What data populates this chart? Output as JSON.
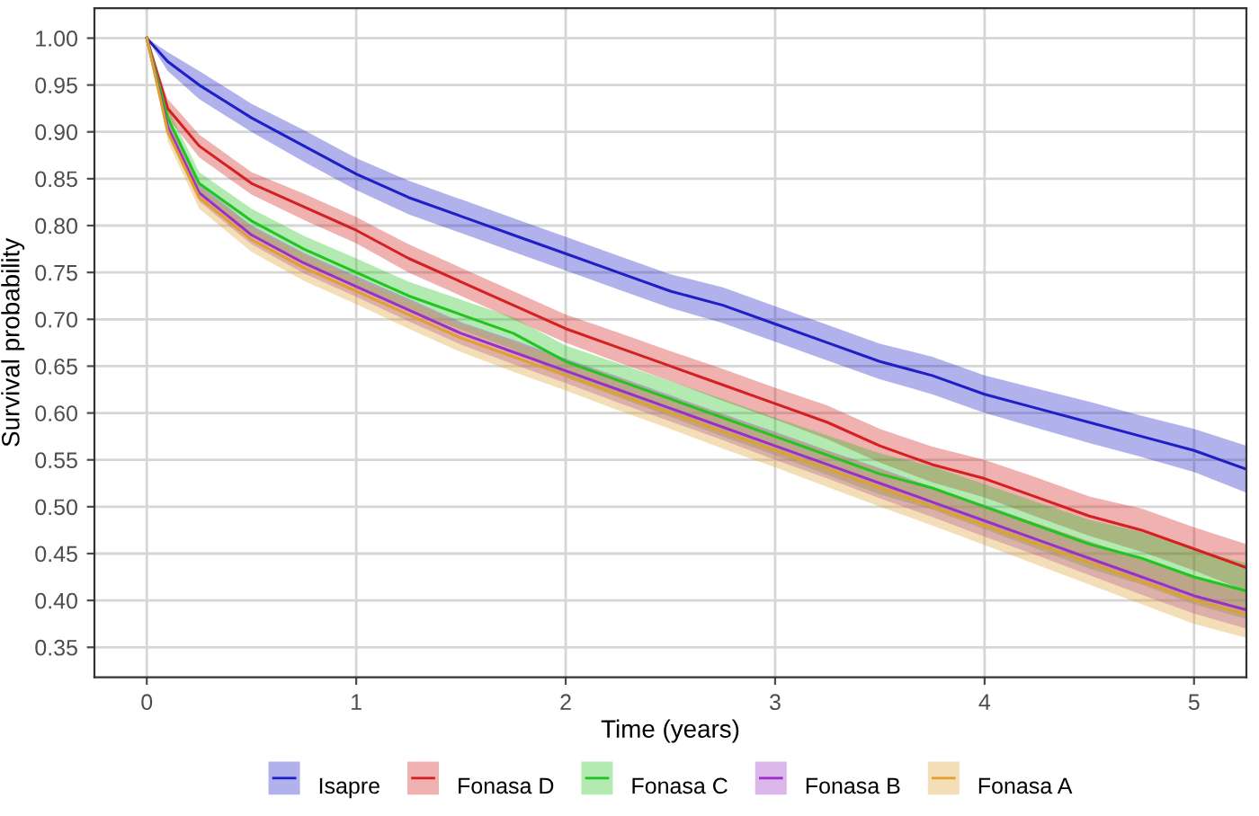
{
  "chart_data": {
    "type": "line",
    "xlabel": "Time (years)",
    "ylabel": "Survival probability",
    "x": [
      0,
      0.1,
      0.25,
      0.5,
      0.75,
      1,
      1.25,
      1.5,
      1.75,
      2,
      2.25,
      2.5,
      2.75,
      3,
      3.25,
      3.5,
      3.75,
      4,
      4.25,
      4.5,
      4.75,
      5,
      5.25
    ],
    "series": [
      {
        "name": "Isapre",
        "color": "#1f1fc8",
        "values": [
          1.0,
          0.975,
          0.95,
          0.915,
          0.885,
          0.855,
          0.83,
          0.81,
          0.79,
          0.77,
          0.75,
          0.73,
          0.715,
          0.695,
          0.675,
          0.655,
          0.64,
          0.62,
          0.605,
          0.59,
          0.575,
          0.56,
          0.54
        ],
        "lower": [
          1.0,
          0.965,
          0.935,
          0.9,
          0.868,
          0.838,
          0.812,
          0.792,
          0.772,
          0.752,
          0.732,
          0.712,
          0.696,
          0.676,
          0.656,
          0.636,
          0.62,
          0.6,
          0.584,
          0.568,
          0.553,
          0.537,
          0.515
        ],
        "upper": [
          1.0,
          0.985,
          0.965,
          0.93,
          0.902,
          0.872,
          0.848,
          0.828,
          0.808,
          0.788,
          0.768,
          0.748,
          0.734,
          0.714,
          0.694,
          0.674,
          0.66,
          0.64,
          0.626,
          0.612,
          0.597,
          0.583,
          0.565
        ]
      },
      {
        "name": "Fonasa D",
        "color": "#d42020",
        "values": [
          1.0,
          0.925,
          0.885,
          0.845,
          0.82,
          0.795,
          0.765,
          0.74,
          0.715,
          0.69,
          0.67,
          0.65,
          0.63,
          0.61,
          0.59,
          0.565,
          0.545,
          0.53,
          0.51,
          0.49,
          0.475,
          0.455,
          0.435
        ],
        "lower": [
          1.0,
          0.915,
          0.873,
          0.833,
          0.806,
          0.781,
          0.75,
          0.725,
          0.7,
          0.675,
          0.654,
          0.634,
          0.613,
          0.593,
          0.572,
          0.547,
          0.526,
          0.51,
          0.489,
          0.469,
          0.452,
          0.432,
          0.41
        ],
        "upper": [
          1.0,
          0.935,
          0.897,
          0.857,
          0.834,
          0.809,
          0.78,
          0.755,
          0.73,
          0.705,
          0.686,
          0.666,
          0.647,
          0.627,
          0.608,
          0.583,
          0.564,
          0.55,
          0.531,
          0.511,
          0.498,
          0.478,
          0.46
        ]
      },
      {
        "name": "Fonasa C",
        "color": "#22c422",
        "values": [
          1.0,
          0.915,
          0.845,
          0.805,
          0.775,
          0.75,
          0.725,
          0.705,
          0.685,
          0.655,
          0.635,
          0.615,
          0.595,
          0.575,
          0.555,
          0.535,
          0.52,
          0.5,
          0.48,
          0.46,
          0.445,
          0.425,
          0.41
        ],
        "lower": [
          1.0,
          0.905,
          0.833,
          0.792,
          0.761,
          0.735,
          0.71,
          0.689,
          0.668,
          0.638,
          0.617,
          0.596,
          0.575,
          0.555,
          0.534,
          0.513,
          0.497,
          0.476,
          0.455,
          0.434,
          0.417,
          0.396,
          0.38
        ],
        "upper": [
          1.0,
          0.925,
          0.857,
          0.818,
          0.789,
          0.765,
          0.74,
          0.721,
          0.702,
          0.672,
          0.653,
          0.634,
          0.615,
          0.595,
          0.576,
          0.557,
          0.543,
          0.524,
          0.505,
          0.486,
          0.473,
          0.454,
          0.44
        ]
      },
      {
        "name": "Fonasa B",
        "color": "#9b30c8",
        "values": [
          1.0,
          0.905,
          0.835,
          0.79,
          0.76,
          0.735,
          0.71,
          0.685,
          0.665,
          0.645,
          0.625,
          0.605,
          0.585,
          0.565,
          0.545,
          0.525,
          0.505,
          0.485,
          0.465,
          0.445,
          0.425,
          0.405,
          0.39
        ],
        "lower": [
          1.0,
          0.897,
          0.826,
          0.78,
          0.749,
          0.724,
          0.698,
          0.673,
          0.652,
          0.632,
          0.611,
          0.591,
          0.571,
          0.55,
          0.53,
          0.509,
          0.489,
          0.468,
          0.448,
          0.427,
          0.406,
          0.386,
          0.37
        ],
        "upper": [
          1.0,
          0.913,
          0.844,
          0.8,
          0.771,
          0.746,
          0.722,
          0.697,
          0.678,
          0.658,
          0.639,
          0.619,
          0.599,
          0.58,
          0.56,
          0.541,
          0.521,
          0.502,
          0.482,
          0.463,
          0.444,
          0.424,
          0.41
        ]
      },
      {
        "name": "Fonasa A",
        "color": "#e0a030",
        "values": [
          1.0,
          0.9,
          0.83,
          0.785,
          0.755,
          0.73,
          0.705,
          0.68,
          0.66,
          0.64,
          0.62,
          0.6,
          0.58,
          0.56,
          0.54,
          0.52,
          0.5,
          0.48,
          0.46,
          0.44,
          0.42,
          0.4,
          0.385
        ],
        "lower": [
          1.0,
          0.89,
          0.818,
          0.772,
          0.741,
          0.716,
          0.69,
          0.665,
          0.644,
          0.624,
          0.603,
          0.583,
          0.562,
          0.542,
          0.521,
          0.5,
          0.48,
          0.459,
          0.438,
          0.417,
          0.396,
          0.375,
          0.36
        ],
        "upper": [
          1.0,
          0.91,
          0.842,
          0.798,
          0.769,
          0.744,
          0.72,
          0.695,
          0.676,
          0.656,
          0.637,
          0.617,
          0.598,
          0.578,
          0.559,
          0.54,
          0.52,
          0.501,
          0.482,
          0.463,
          0.444,
          0.425,
          0.41
        ]
      }
    ],
    "xlim": [
      -0.25,
      5.25
    ],
    "ylim": [
      0.318,
      1.032
    ],
    "xticks": [
      0,
      1,
      2,
      3,
      4,
      5
    ],
    "yticks": [
      {
        "value": 0.35,
        "label": "0.35"
      },
      {
        "value": 0.4,
        "label": "0.40"
      },
      {
        "value": 0.45,
        "label": "0.45"
      },
      {
        "value": 0.5,
        "label": "0.50"
      },
      {
        "value": 0.55,
        "label": "0.55"
      },
      {
        "value": 0.6,
        "label": "0.60"
      },
      {
        "value": 0.65,
        "label": "0.65"
      },
      {
        "value": 0.7,
        "label": "0.70"
      },
      {
        "value": 0.75,
        "label": "0.75"
      },
      {
        "value": 0.8,
        "label": "0.80"
      },
      {
        "value": 0.85,
        "label": "0.85"
      },
      {
        "value": 0.9,
        "label": "0.90"
      },
      {
        "value": 0.95,
        "label": "0.95"
      },
      {
        "value": 1.0,
        "label": "1.00"
      }
    ],
    "grid": true,
    "legend": "bottom",
    "line_style": "solid"
  }
}
